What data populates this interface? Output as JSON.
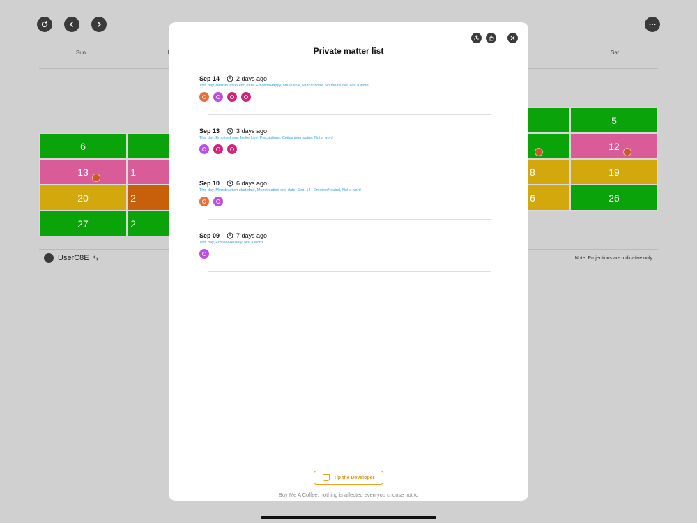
{
  "weekdays": {
    "sun": "Sun",
    "mon_partial": "M",
    "fri_partial": "i",
    "sat": "Sat"
  },
  "calendar_cells": {
    "row1": {
      "col6": "",
      "col7": "5"
    },
    "row2": {
      "col1": "6",
      "col6": "",
      "col7": "12"
    },
    "row3": {
      "col1": "13",
      "col2": "1",
      "col6": "8",
      "col7": "19"
    },
    "row4": {
      "col1": "20",
      "col2": "2",
      "col6": "6",
      "col7": "26"
    },
    "row5": {
      "col1": "27",
      "col2": "2"
    }
  },
  "user": {
    "name": "UserC8E"
  },
  "note": "Note: Projections are indicative only",
  "modal": {
    "title": "Private matter list",
    "entries": [
      {
        "date": "Sep  14",
        "ago": "2 days ago",
        "desc": "This day, Menstruation end date, EmotionHappy, Make love, Precautions: No measures, Not a word"
      },
      {
        "date": "Sep  13",
        "ago": "3 days ago",
        "desc": "This day, EmotionLove, Make love, Precautions: Coitus interruptus, Not a word"
      },
      {
        "date": "Sep  10",
        "ago": "6 days ago",
        "desc": "This day, Menstruation start date, Menstruation end date: Sep. 14 , EmotionNeutral, Not a word"
      },
      {
        "date": "Sep  09",
        "ago": "7 days ago",
        "desc": "This day, EmotionAnxiety, Not a word"
      }
    ],
    "tip_label": "Tip the Developer",
    "coffee_text": "Buy Me A Coffee, nothing is affected even you choose not to"
  },
  "colors": {
    "green": "#0aa40a",
    "pink": "#d95c98",
    "gold": "#d2a80c",
    "orange": "#c85f0a",
    "desc_blue": "#38a0dd",
    "tip_orange": "#f0a020"
  }
}
